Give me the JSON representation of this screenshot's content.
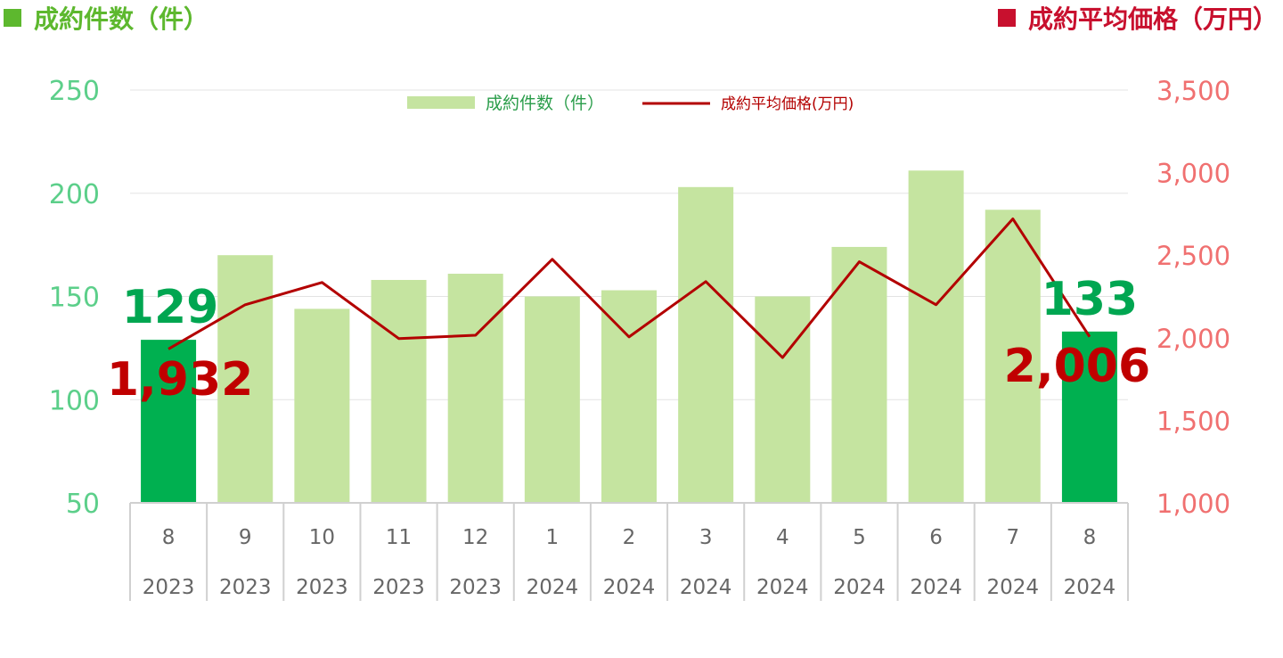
{
  "titles": {
    "left": "成約件数（件）",
    "right": "成約平均価格（万円）"
  },
  "colors": {
    "bar_normal": "#c5e4a0",
    "bar_highlight": "#00b050",
    "line": "#b30000",
    "left_axis": "#5ccf8a",
    "right_axis": "#f07070",
    "left_title": "#5db82e",
    "right_title": "#c8102e",
    "highlight_count_label": "#00a651",
    "highlight_price_label": "#c00000"
  },
  "chart_data": {
    "type": "bar",
    "categories": [
      "8",
      "9",
      "10",
      "11",
      "12",
      "1",
      "2",
      "3",
      "4",
      "5",
      "6",
      "7",
      "8"
    ],
    "category_years": [
      "2023",
      "2023",
      "2023",
      "2023",
      "2023",
      "2024",
      "2024",
      "2024",
      "2024",
      "2024",
      "2024",
      "2024",
      "2024"
    ],
    "series": [
      {
        "name": "成約件数（件）",
        "type": "bar",
        "axis": "left",
        "values": [
          129,
          170,
          144,
          158,
          161,
          150,
          153,
          203,
          150,
          174,
          211,
          192,
          133
        ],
        "highlight_indices": [
          0,
          12
        ]
      },
      {
        "name": "成約平均価格(万円)",
        "type": "line",
        "axis": "right",
        "values": [
          1932,
          2200,
          2335,
          1995,
          2015,
          2475,
          2005,
          2340,
          1880,
          2460,
          2200,
          2720,
          2006
        ]
      }
    ],
    "y_left": {
      "min": 50,
      "max": 250,
      "ticks": [
        "50",
        "100",
        "150",
        "200",
        "250"
      ]
    },
    "y_right": {
      "min": 1000,
      "max": 3500,
      "ticks": [
        "1,000",
        "1,500",
        "2,000",
        "2,500",
        "3,000",
        "3,500"
      ]
    },
    "data_labels": {
      "count_first": "129",
      "count_last": "133",
      "price_first": "1,932",
      "price_last": "2,006"
    },
    "legend_position": "top-center",
    "grid": true
  }
}
